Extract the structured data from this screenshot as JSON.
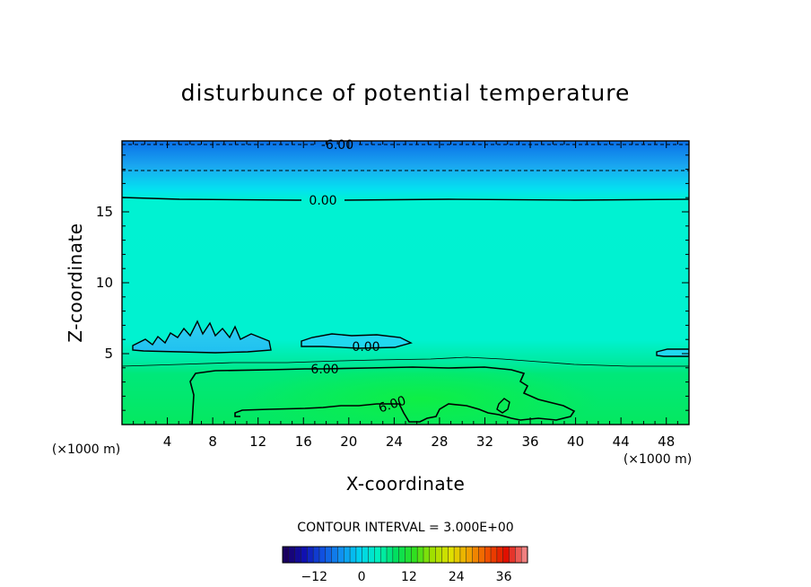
{
  "chart_data": {
    "type": "heatmap",
    "title": "disturbunce of potential temperature",
    "xlabel": "X-coordinate",
    "ylabel": "Z-coordinate",
    "x_unit": "(×1000 m)",
    "xlim": [
      0,
      50
    ],
    "ylim": [
      0,
      20
    ],
    "x_ticks": [
      4,
      8,
      12,
      16,
      20,
      24,
      28,
      32,
      36,
      40,
      44,
      48
    ],
    "y_ticks": [
      5,
      10,
      15
    ],
    "contour_interval_text": "CONTOUR INTERVAL = 3.000E+00",
    "contour_interval": 3.0,
    "contour_labels": [
      {
        "text": "-6.00",
        "x": 19,
        "z": 19.6
      },
      {
        "text": "0.00",
        "x": 17.5,
        "z": 15.8
      },
      {
        "text": "0.00",
        "x": 21.5,
        "z": 5.5
      },
      {
        "text": "6.00",
        "x": 18,
        "z": 3.9
      },
      {
        "text": "6.00",
        "x": 24,
        "z": 1.5
      }
    ],
    "colorbar": {
      "ticks": [
        -12,
        0,
        12,
        24,
        36
      ],
      "range": [
        -20,
        42
      ],
      "colors": [
        "#1a0060",
        "#1010b0",
        "#1050e0",
        "#1090f0",
        "#00d0f0",
        "#00f0c0",
        "#00e060",
        "#30e020",
        "#a0e000",
        "#e0e000",
        "#f0a000",
        "#f05000",
        "#e01000",
        "#f08080"
      ]
    },
    "field_colors": {
      "top": "#0a6fe8",
      "upper": "#1aa8f0",
      "middle": "#00f2d2",
      "lower": "#00e87a",
      "bottom_core": "#05ee50"
    }
  }
}
